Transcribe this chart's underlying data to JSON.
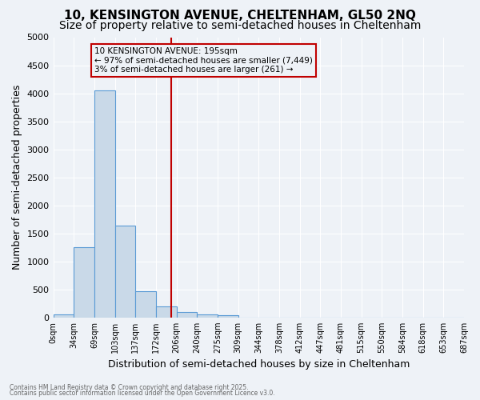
{
  "title1": "10, KENSINGTON AVENUE, CHELTENHAM, GL50 2NQ",
  "title2": "Size of property relative to semi-detached houses in Cheltenham",
  "xlabel": "Distribution of semi-detached houses by size in Cheltenham",
  "ylabel": "Number of semi-detached properties",
  "bin_labels": [
    "0sqm",
    "34sqm",
    "69sqm",
    "103sqm",
    "137sqm",
    "172sqm",
    "206sqm",
    "240sqm",
    "275sqm",
    "309sqm",
    "344sqm",
    "378sqm",
    "412sqm",
    "447sqm",
    "481sqm",
    "515sqm",
    "550sqm",
    "584sqm",
    "618sqm",
    "653sqm",
    "687sqm"
  ],
  "bar_values": [
    50,
    1250,
    4050,
    1640,
    470,
    195,
    100,
    60,
    45,
    0,
    0,
    0,
    0,
    0,
    0,
    0,
    0,
    0,
    0,
    0
  ],
  "bar_color": "#c9d9e8",
  "bar_edge_color": "#5b9bd5",
  "vline_x": 5.74,
  "vline_color": "#c00000",
  "ylim": [
    0,
    5000
  ],
  "yticks": [
    0,
    500,
    1000,
    1500,
    2000,
    2500,
    3000,
    3500,
    4000,
    4500,
    5000
  ],
  "annotation_title": "10 KENSINGTON AVENUE: 195sqm",
  "annotation_line1": "← 97% of semi-detached houses are smaller (7,449)",
  "annotation_line2": "3% of semi-detached houses are larger (261) →",
  "annotation_box_color": "#c00000",
  "footer1": "Contains HM Land Registry data © Crown copyright and database right 2025.",
  "footer2": "Contains public sector information licensed under the Open Government Licence v3.0.",
  "bg_color": "#eef2f7",
  "grid_color": "#ffffff",
  "title1_fontsize": 11,
  "title2_fontsize": 10,
  "xlabel_fontsize": 9,
  "ylabel_fontsize": 9
}
